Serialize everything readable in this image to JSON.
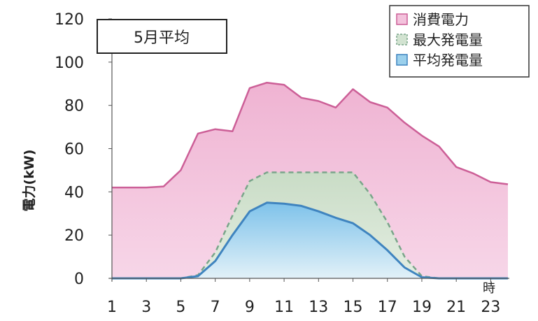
{
  "chart_data": {
    "type": "area",
    "title": "5月平均",
    "xlabel": "時",
    "ylabel": "電力(kW)",
    "ylim": [
      0,
      120
    ],
    "xlim": [
      1,
      24
    ],
    "yticks": [
      0,
      20,
      40,
      60,
      80,
      100,
      120
    ],
    "xticks": [
      1,
      3,
      5,
      7,
      9,
      11,
      13,
      15,
      17,
      19,
      21,
      23
    ],
    "legend_position": "top-right",
    "x": [
      1,
      2,
      3,
      4,
      5,
      6,
      7,
      8,
      9,
      10,
      11,
      12,
      13,
      14,
      15,
      16,
      17,
      18,
      19,
      20,
      21,
      22,
      23,
      24
    ],
    "series": [
      {
        "name": "消費電力",
        "color": "#f3c2dc",
        "edge": "#cc5f97",
        "values": [
          42,
          42,
          42,
          42.5,
          50,
          67,
          69,
          68,
          88,
          90.5,
          89.5,
          83.5,
          82,
          79,
          87.5,
          81.5,
          79,
          72,
          66,
          61,
          51.5,
          48.5,
          44.5,
          43.5
        ]
      },
      {
        "name": "最大発電量",
        "color": "#d2e3d1",
        "edge": "#7aa58a",
        "values": [
          0,
          0,
          0,
          0,
          0,
          1.5,
          12,
          29,
          45,
          49,
          49,
          49,
          49,
          49,
          49,
          39,
          26,
          10,
          1,
          0,
          0,
          0,
          0,
          0
        ]
      },
      {
        "name": "平均発電量",
        "color": "#9bd0ec",
        "edge": "#3f84bf",
        "values": [
          0,
          0,
          0,
          0,
          0,
          1,
          8,
          20,
          31,
          35,
          34.5,
          33.5,
          31,
          28,
          25.5,
          20,
          13,
          5,
          0.5,
          0,
          0,
          0,
          0,
          0
        ]
      }
    ]
  }
}
